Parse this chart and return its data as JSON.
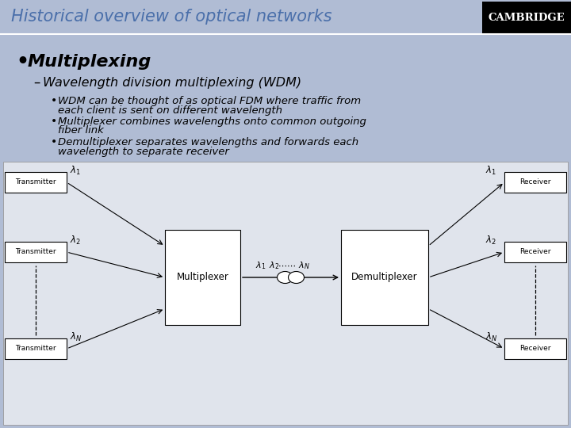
{
  "title": "Historical overview of optical networks",
  "cambridge_label": "CAMBRIDGE",
  "bg_color": "#b0bcd4",
  "cambridge_bg": "#000000",
  "cambridge_color": "#ffffff",
  "title_color": "#4a6faa",
  "bullet1": "Multiplexing",
  "sub1": "Wavelength division multiplexing (WDM)",
  "point1a": "WDM can be thought of as optical FDM where traffic from",
  "point1b": "each client is sent on different wavelength",
  "point2a": "Multiplexer combines wavelengths onto common outgoing",
  "point2b": "fiber link",
  "point3a": "Demultiplexer separates wavelengths and forwards each",
  "point3b": "wavelength to separate receiver"
}
